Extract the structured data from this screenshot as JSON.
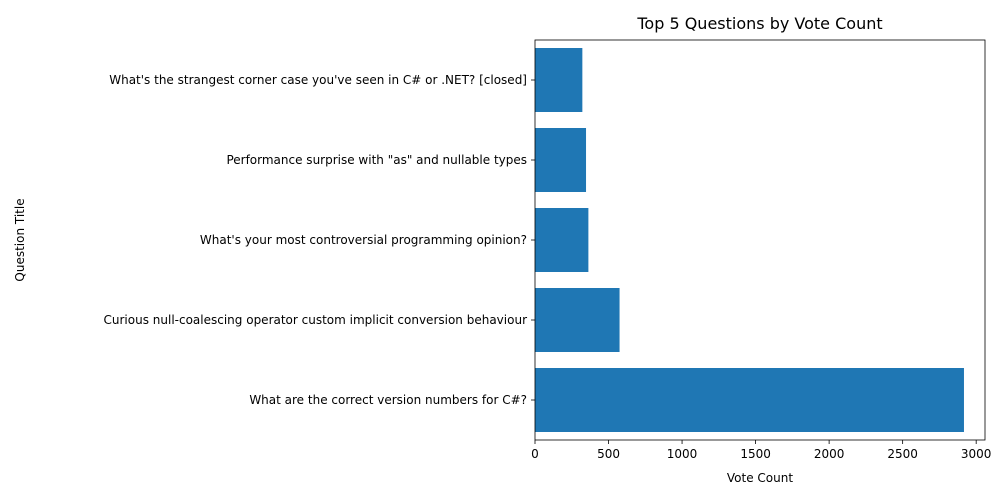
{
  "chart_data": {
    "type": "bar",
    "orientation": "horizontal",
    "title": "Top 5 Questions by Vote Count",
    "xlabel": "Vote Count",
    "ylabel": "Question Title",
    "categories": [
      "What are the correct version numbers for C#?",
      "Curious null-coalescing operator custom implicit conversion behaviour",
      "What's your most controversial programming opinion?",
      "Performance surprise with \"as\" and nullable types",
      "What's the strangest corner case you've seen in C# or .NET? [closed]"
    ],
    "values": [
      2917,
      575,
      363,
      347,
      322
    ],
    "xlim": [
      0,
      3060
    ],
    "xticks": [
      0,
      500,
      1000,
      1500,
      2000,
      2500,
      3000
    ],
    "grid": false,
    "bar_color": "#1f77b4"
  }
}
